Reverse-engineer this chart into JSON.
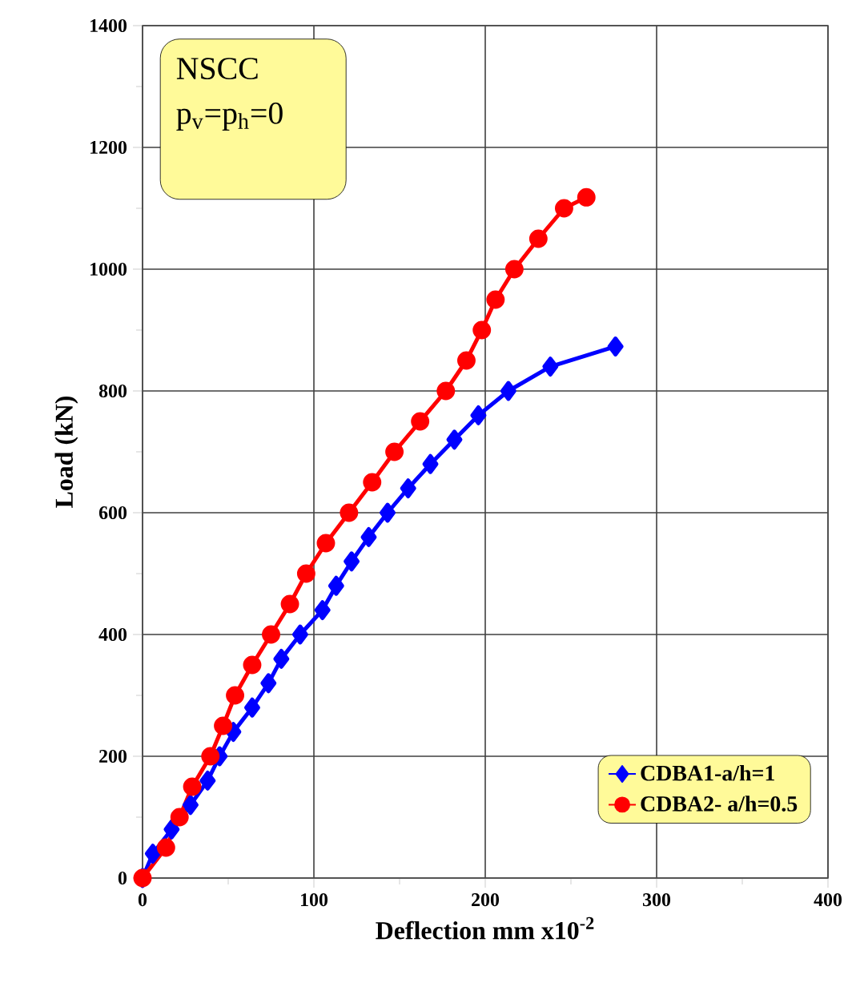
{
  "chart_data": {
    "type": "line",
    "xlabel": "Deflection mm x10$^{-2}$",
    "ylabel": "Load (kN)",
    "annotations": [
      "NSCC",
      "p$_{v}$=p$_{h}$=0"
    ],
    "xlim": [
      0,
      400
    ],
    "xticks": [
      0,
      100,
      200,
      300,
      400
    ],
    "ylim": [
      0,
      1400
    ],
    "yticks": [
      0,
      200,
      400,
      600,
      800,
      1000,
      1200,
      1400
    ],
    "grid": true,
    "legend": "bottom right",
    "line_style": "solid",
    "series": [
      {
        "name": "CDBA1-a/h=1",
        "color": "#0000ff",
        "marker": "diamond",
        "x": [
          0,
          6,
          17,
          28,
          38,
          45,
          53,
          64,
          73.5,
          81,
          92,
          105,
          113,
          122,
          132,
          143,
          155,
          168,
          182,
          196,
          213.5,
          238,
          276
        ],
        "values": [
          0,
          40,
          80,
          120,
          160,
          200,
          240,
          280,
          320,
          360,
          400,
          440,
          480,
          520,
          560,
          600,
          640,
          680,
          720,
          760,
          800,
          840,
          873
        ]
      },
      {
        "name": "CDBA2- a/h=0.5",
        "color": "#ff0000",
        "marker": "circle",
        "x": [
          0,
          13.7,
          21.6,
          29,
          39.6,
          47,
          54,
          64,
          75,
          86,
          95.5,
          107,
          120.5,
          134,
          147,
          162,
          177,
          189,
          198,
          206,
          217,
          231,
          246,
          259
        ],
        "values": [
          0,
          50,
          100,
          150,
          200,
          250,
          300,
          350,
          400,
          450,
          500,
          550,
          600,
          650,
          700,
          750,
          800,
          850,
          900,
          950,
          1000,
          1050,
          1100,
          1118
        ]
      }
    ]
  }
}
